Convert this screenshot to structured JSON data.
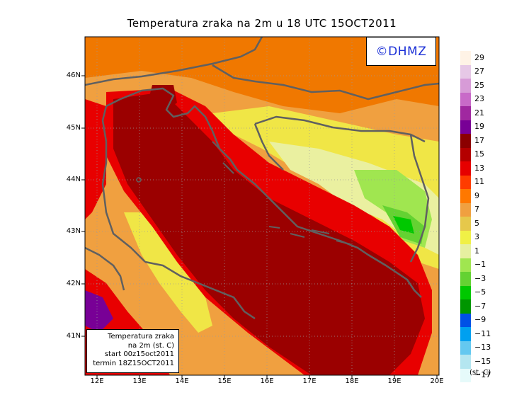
{
  "title": "Temperatura zraka na 2m u 18 UTC 15OCT2011",
  "logo": "©DHMZ",
  "info_box": {
    "line1": "Temperatura zraka",
    "line2": "na 2m (st. C)",
    "line3": "start 00z15oct2011",
    "line4": "termin 18Z15OCT2011"
  },
  "lat_ticks": [
    "46N",
    "45N",
    "44N",
    "43N",
    "42N",
    "41N"
  ],
  "lon_ticks": [
    "12E",
    "13E",
    "14E",
    "15E",
    "16E",
    "17E",
    "18E",
    "19E",
    "20E"
  ],
  "legend": {
    "unit": "(st. C)",
    "labels": [
      "29",
      "27",
      "25",
      "23",
      "21",
      "19",
      "17",
      "15",
      "13",
      "11",
      "9",
      "7",
      "5",
      "3",
      "1",
      "−1",
      "−3",
      "−5",
      "−7",
      "−9",
      "−11",
      "−13",
      "−15",
      "−17"
    ],
    "colors": [
      "#fff3e6",
      "#e6c8e6",
      "#d79bd7",
      "#c86ac8",
      "#a028a0",
      "#780096",
      "#8b0000",
      "#b40000",
      "#e60000",
      "#ff3c00",
      "#ff7800",
      "#f0a040",
      "#e6c84b",
      "#f0f046",
      "#e6f0a0",
      "#a0e650",
      "#64d232",
      "#00c800",
      "#009600",
      "#0050e6",
      "#00a0f0",
      "#64c8f0",
      "#b4e6f0",
      "#e6fafa"
    ]
  },
  "colors": {
    "sea_dark": "#9b0000",
    "sea_mid": "#d20000",
    "coast_red": "#e80000",
    "orange": "#f07800",
    "light_orange": "#f0a040",
    "yellow": "#f0e646",
    "pale_yellow": "#eaf0a0",
    "green": "#64d232",
    "dark_green": "#00c800",
    "purple": "#780096",
    "border": "#606060"
  }
}
